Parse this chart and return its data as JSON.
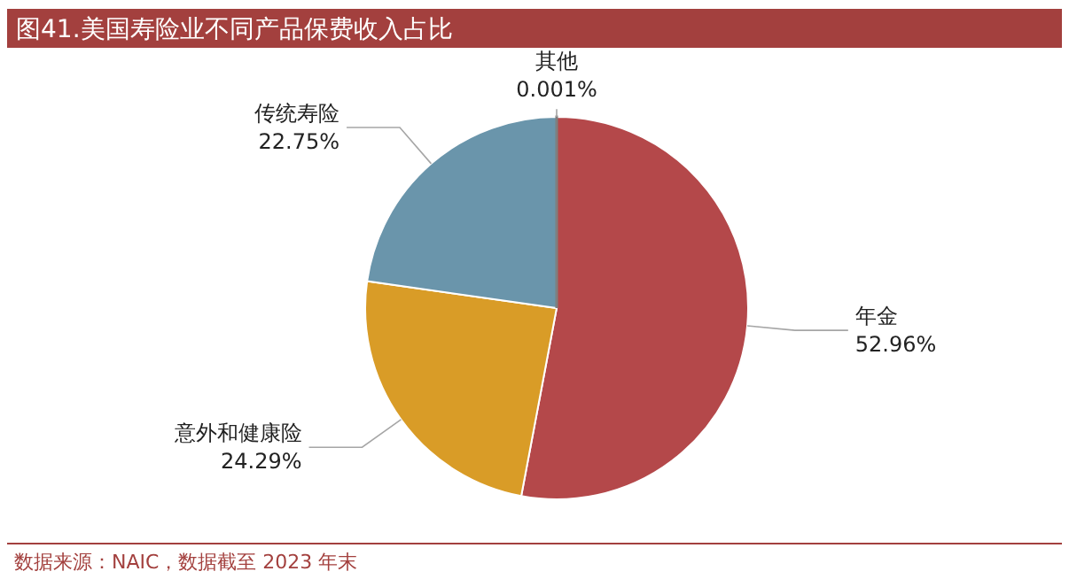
{
  "chart_data": {
    "type": "pie",
    "title": "图41.美国寿险业不同产品保费收入占比",
    "categories": [
      "其他",
      "年金",
      "意外和健康险",
      "传统寿险"
    ],
    "values": [
      0.001,
      52.96,
      24.29,
      22.75
    ],
    "value_labels": [
      "0.001%",
      "52.96%",
      "24.29%",
      "22.75%"
    ],
    "colors": [
      "#7f7f7f",
      "#b4484a",
      "#d99c27",
      "#6a95ab"
    ],
    "annotations": [
      "数据来源：NAIC，数据截至 2023 年末"
    ]
  }
}
